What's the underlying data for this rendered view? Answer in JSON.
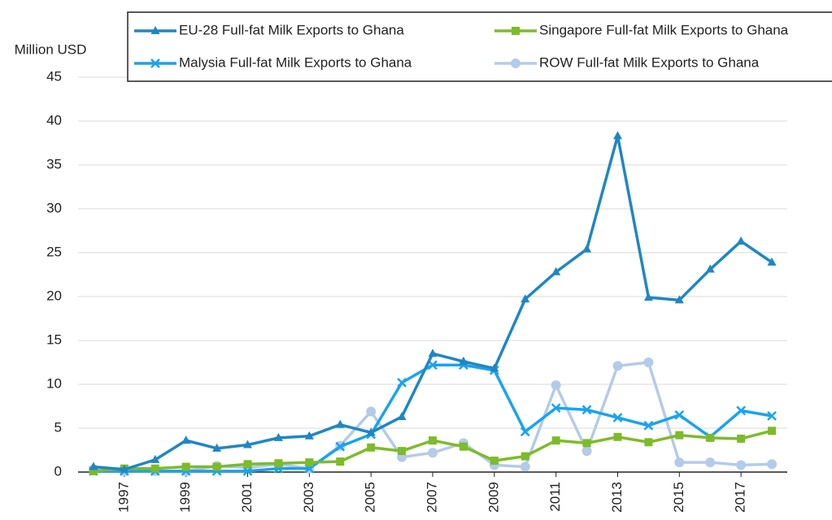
{
  "chart_data": {
    "type": "line",
    "y_label": "Million USD",
    "x": [
      1996,
      1997,
      1998,
      1999,
      2000,
      2001,
      2002,
      2003,
      2004,
      2005,
      2006,
      2007,
      2008,
      2009,
      2010,
      2011,
      2012,
      2013,
      2014,
      2015,
      2016,
      2017,
      2018
    ],
    "xlim": [
      1995.5,
      2018.5
    ],
    "xticks": [
      1997,
      1999,
      2001,
      2003,
      2005,
      2007,
      2009,
      2011,
      2013,
      2015,
      2017
    ],
    "ylim": [
      0,
      45
    ],
    "yticks": [
      0,
      5,
      10,
      15,
      20,
      25,
      30,
      35,
      40,
      45
    ],
    "grid": true,
    "legend": "top",
    "series": [
      {
        "name": "EU-28 Full-fat Milk Exports to Ghana",
        "color": "#1f86c4",
        "marker": "triangle",
        "values": [
          0.6,
          0.3,
          1.4,
          3.6,
          2.7,
          3.1,
          3.9,
          4.1,
          5.4,
          4.5,
          6.3,
          13.5,
          12.6,
          11.8,
          19.7,
          22.8,
          25.4,
          38.3,
          19.9,
          19.6,
          23.1,
          26.3,
          23.9
        ]
      },
      {
        "name": "Singapore Full-fat Milk Exports to Ghana",
        "color": "#7dbb2a",
        "marker": "square",
        "values": [
          0.1,
          0.4,
          0.4,
          0.6,
          0.6,
          0.9,
          1.0,
          1.1,
          1.2,
          2.8,
          2.4,
          3.6,
          2.9,
          1.3,
          1.8,
          3.6,
          3.3,
          4.0,
          3.4,
          4.2,
          3.9,
          3.8,
          4.7
        ]
      },
      {
        "name": "Malysia Full-fat Milk Exports to Ghana",
        "color": "#19a3f0",
        "marker": "x",
        "values": [
          0.1,
          0.1,
          0.1,
          0.1,
          0.1,
          0.1,
          0.4,
          0.4,
          2.9,
          4.3,
          10.2,
          12.2,
          12.2,
          11.6,
          4.6,
          7.3,
          7.1,
          6.2,
          5.3,
          6.5,
          4.0,
          7.0,
          6.4
        ]
      },
      {
        "name": "ROW Full-fat Milk Exports to Ghana",
        "color": "#b4cbe8",
        "marker": "circle",
        "values": [
          0.3,
          0.1,
          0.1,
          0.1,
          0.7,
          0.5,
          0.9,
          0.4,
          3.0,
          6.9,
          1.7,
          2.2,
          3.3,
          0.8,
          0.6,
          9.9,
          2.4,
          12.1,
          12.5,
          1.1,
          1.1,
          0.8,
          0.9
        ]
      }
    ]
  }
}
